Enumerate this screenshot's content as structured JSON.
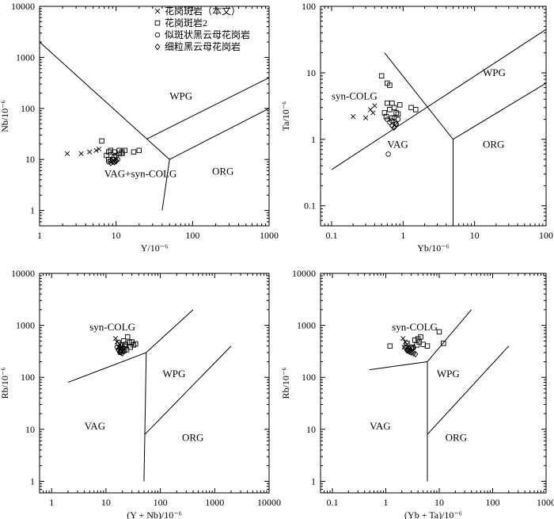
{
  "legend": [
    {
      "symbol": "x",
      "label": "花岗斑岩（本文）"
    },
    {
      "symbol": "square",
      "label": "花岗斑岩2"
    },
    {
      "symbol": "circle",
      "label": "似斑状黑云母花岗岩"
    },
    {
      "symbol": "diamond",
      "label": "细粒黑云母花岗岩"
    }
  ],
  "chart_data": [
    {
      "type": "scatter",
      "xscale": "log",
      "yscale": "log",
      "xlabel": "Y/10⁻⁶",
      "ylabel": "Nb/10⁻⁶",
      "xlim": [
        1,
        1000
      ],
      "ylim": [
        0.5,
        10000
      ],
      "xticks": [
        1,
        10,
        100,
        1000
      ],
      "yticks": [
        1,
        10,
        100,
        1000,
        10000
      ],
      "xtick_labels": [
        "1",
        "10",
        "100",
        "1000"
      ],
      "ytick_labels": [
        "1",
        "10",
        "100",
        "1000",
        "10000"
      ],
      "fields": [
        {
          "label": "WPG",
          "x": 50,
          "y": 150
        },
        {
          "label": "ORG",
          "x": 180,
          "y": 5
        },
        {
          "label": "VAG+syn-COLG",
          "x": 7,
          "y": 4.5
        }
      ],
      "boundaries": [
        [
          [
            1,
            2000
          ],
          [
            50,
            10
          ]
        ],
        [
          [
            50,
            10
          ],
          [
            40,
            1
          ]
        ],
        [
          [
            50,
            10
          ],
          [
            1000,
            100
          ]
        ],
        [
          [
            25,
            25
          ],
          [
            1000,
            400
          ]
        ]
      ],
      "series": [
        {
          "symbol": "x",
          "x": [
            2.3,
            3.5,
            4.5,
            5.5,
            6
          ],
          "y": [
            13,
            13,
            14,
            15,
            16
          ]
        },
        {
          "symbol": "square",
          "x": [
            6.5,
            7.5,
            8,
            8.5,
            9,
            9.5,
            10,
            11,
            12,
            13,
            17,
            20,
            8,
            9.5,
            11,
            12
          ],
          "y": [
            23,
            12,
            14,
            15,
            10,
            14,
            12,
            15,
            13,
            15,
            14,
            15,
            10,
            11,
            13,
            14
          ]
        },
        {
          "symbol": "circle",
          "x": [
            8,
            8.5,
            9,
            9.5,
            10,
            10.5
          ],
          "y": [
            9,
            9.5,
            10,
            9,
            9.5,
            10
          ]
        },
        {
          "symbol": "diamond",
          "x": [
            8.5,
            9,
            9.5,
            10
          ],
          "y": [
            8.5,
            9,
            8.8,
            9.2
          ]
        }
      ]
    },
    {
      "type": "scatter",
      "xscale": "log",
      "yscale": "log",
      "xlabel": "Yb/10⁻⁶",
      "ylabel": "Ta/10⁻⁶",
      "xlim": [
        0.07,
        100
      ],
      "ylim": [
        0.05,
        100
      ],
      "xticks": [
        0.1,
        1,
        10,
        100
      ],
      "yticks": [
        0.1,
        1,
        10,
        100
      ],
      "xtick_labels": [
        "0.1",
        "1",
        "10",
        "100"
      ],
      "ytick_labels": [
        "0.1",
        "1",
        "10",
        "100"
      ],
      "fields": [
        {
          "label": "WPG",
          "x": 13,
          "y": 9
        },
        {
          "label": "syn-COLG",
          "x": 0.1,
          "y": 4
        },
        {
          "label": "VAG",
          "x": 0.6,
          "y": 0.75
        },
        {
          "label": "ORG",
          "x": 13,
          "y": 0.75
        }
      ],
      "boundaries": [
        [
          [
            0.55,
            20
          ],
          [
            5,
            1
          ]
        ],
        [
          [
            5,
            1
          ],
          [
            5,
            0.05
          ]
        ],
        [
          [
            5,
            1
          ],
          [
            100,
            7
          ]
        ],
        [
          [
            0.1,
            0.35
          ],
          [
            100,
            45
          ]
        ]
      ],
      "series": [
        {
          "symbol": "x",
          "x": [
            0.2,
            0.3,
            0.35,
            0.4,
            0.38
          ],
          "y": [
            2.2,
            2.1,
            2.8,
            3.2,
            2.5
          ]
        },
        {
          "symbol": "square",
          "x": [
            0.5,
            0.6,
            0.65,
            0.7,
            0.75,
            0.8,
            0.55,
            0.6,
            0.65,
            0.9,
            1.3,
            1.5,
            0.58,
            0.7,
            0.85
          ],
          "y": [
            9,
            7,
            6.5,
            3.5,
            3,
            2.5,
            2.5,
            3.5,
            2.8,
            3.3,
            3,
            2.8,
            2.2,
            2.1,
            2.4
          ]
        },
        {
          "symbol": "circle",
          "x": [
            0.6,
            0.65,
            0.7,
            0.75,
            0.8,
            0.85,
            0.62
          ],
          "y": [
            2,
            1.8,
            1.9,
            2.1,
            1.7,
            2,
            0.6
          ]
        },
        {
          "symbol": "diamond",
          "x": [
            0.7,
            0.75,
            0.8,
            0.78
          ],
          "y": [
            1.6,
            1.5,
            1.7,
            1.8
          ]
        }
      ]
    },
    {
      "type": "scatter",
      "xscale": "log",
      "yscale": "log",
      "xlabel": "(Y + Nb)/10⁻⁶",
      "ylabel": "Rb/10⁻⁶",
      "xlim": [
        0.6,
        10000
      ],
      "ylim": [
        0.6,
        10000
      ],
      "xticks": [
        1,
        10,
        100,
        1000,
        10000
      ],
      "yticks": [
        1,
        10,
        100,
        1000,
        10000
      ],
      "xtick_labels": [
        "1",
        "10",
        "100",
        "1000",
        "10000"
      ],
      "ytick_labels": [
        "1",
        "10",
        "100",
        "1000",
        "10000"
      ],
      "fields": [
        {
          "label": "syn-COLG",
          "x": 5,
          "y": 800
        },
        {
          "label": "WPG",
          "x": 110,
          "y": 100
        },
        {
          "label": "VAG",
          "x": 4,
          "y": 10
        },
        {
          "label": "ORG",
          "x": 250,
          "y": 6
        }
      ],
      "boundaries": [
        [
          [
            2,
            80
          ],
          [
            55,
            300
          ]
        ],
        [
          [
            55,
            300
          ],
          [
            400,
            2000
          ]
        ],
        [
          [
            55,
            300
          ],
          [
            50,
            1
          ]
        ],
        [
          [
            52,
            8
          ],
          [
            2000,
            400
          ]
        ]
      ],
      "series": [
        {
          "symbol": "x",
          "x": [
            15,
            16,
            18,
            17,
            19
          ],
          "y": [
            560,
            480,
            430,
            380,
            350
          ]
        },
        {
          "symbol": "square",
          "x": [
            17,
            19,
            21,
            23,
            25,
            27,
            30,
            20,
            22,
            24,
            28,
            32,
            35
          ],
          "y": [
            460,
            420,
            500,
            430,
            600,
            470,
            480,
            360,
            390,
            340,
            380,
            420,
            440
          ]
        },
        {
          "symbol": "circle",
          "x": [
            16,
            17,
            18,
            19,
            20,
            21,
            22,
            18
          ],
          "y": [
            380,
            340,
            360,
            330,
            350,
            370,
            320,
            300
          ]
        },
        {
          "symbol": "diamond",
          "x": [
            17,
            18,
            19,
            20,
            21
          ],
          "y": [
            330,
            310,
            300,
            290,
            320
          ]
        }
      ]
    },
    {
      "type": "scatter",
      "xscale": "log",
      "yscale": "log",
      "xlabel": "(Yb + Ta)/10⁻⁶",
      "ylabel": "Rb/10⁻⁶",
      "xlim": [
        0.06,
        1000
      ],
      "ylim": [
        0.6,
        10000
      ],
      "xticks": [
        0.1,
        1,
        10,
        100,
        1000
      ],
      "yticks": [
        1,
        10,
        100,
        1000,
        10000
      ],
      "xtick_labels": [
        "0.1",
        "1",
        "10",
        "100",
        "1000"
      ],
      "ytick_labels": [
        "1",
        "10",
        "100",
        "1000",
        "10000"
      ],
      "fields": [
        {
          "label": "syn-COLG",
          "x": 1.3,
          "y": 800
        },
        {
          "label": "WPG",
          "x": 9,
          "y": 100
        },
        {
          "label": "VAG",
          "x": 0.5,
          "y": 10
        },
        {
          "label": "ORG",
          "x": 13,
          "y": 6
        }
      ],
      "boundaries": [
        [
          [
            0.5,
            140
          ],
          [
            6,
            200
          ]
        ],
        [
          [
            6,
            200
          ],
          [
            40,
            2000
          ]
        ],
        [
          [
            6,
            200
          ],
          [
            6,
            1
          ]
        ],
        [
          [
            6,
            8
          ],
          [
            200,
            400
          ]
        ]
      ],
      "series": [
        {
          "symbol": "x",
          "x": [
            2.1,
            2.3,
            2.5,
            2.2,
            2.8
          ],
          "y": [
            560,
            480,
            430,
            380,
            350
          ]
        },
        {
          "symbol": "square",
          "x": [
            1.2,
            2.5,
            3,
            3.5,
            4,
            4.5,
            5,
            6,
            10,
            12,
            2.7,
            3.2,
            3.8,
            4.2
          ],
          "y": [
            400,
            450,
            380,
            520,
            550,
            600,
            430,
            400,
            750,
            450,
            350,
            380,
            420,
            480
          ]
        },
        {
          "symbol": "circle",
          "x": [
            2.3,
            2.5,
            2.7,
            2.9,
            3.1,
            3.3,
            2.6
          ],
          "y": [
            380,
            340,
            360,
            330,
            350,
            370,
            320
          ]
        },
        {
          "symbol": "diamond",
          "x": [
            2.5,
            2.8,
            3,
            3.3,
            3.6
          ],
          "y": [
            330,
            310,
            300,
            290,
            280
          ]
        }
      ]
    }
  ]
}
